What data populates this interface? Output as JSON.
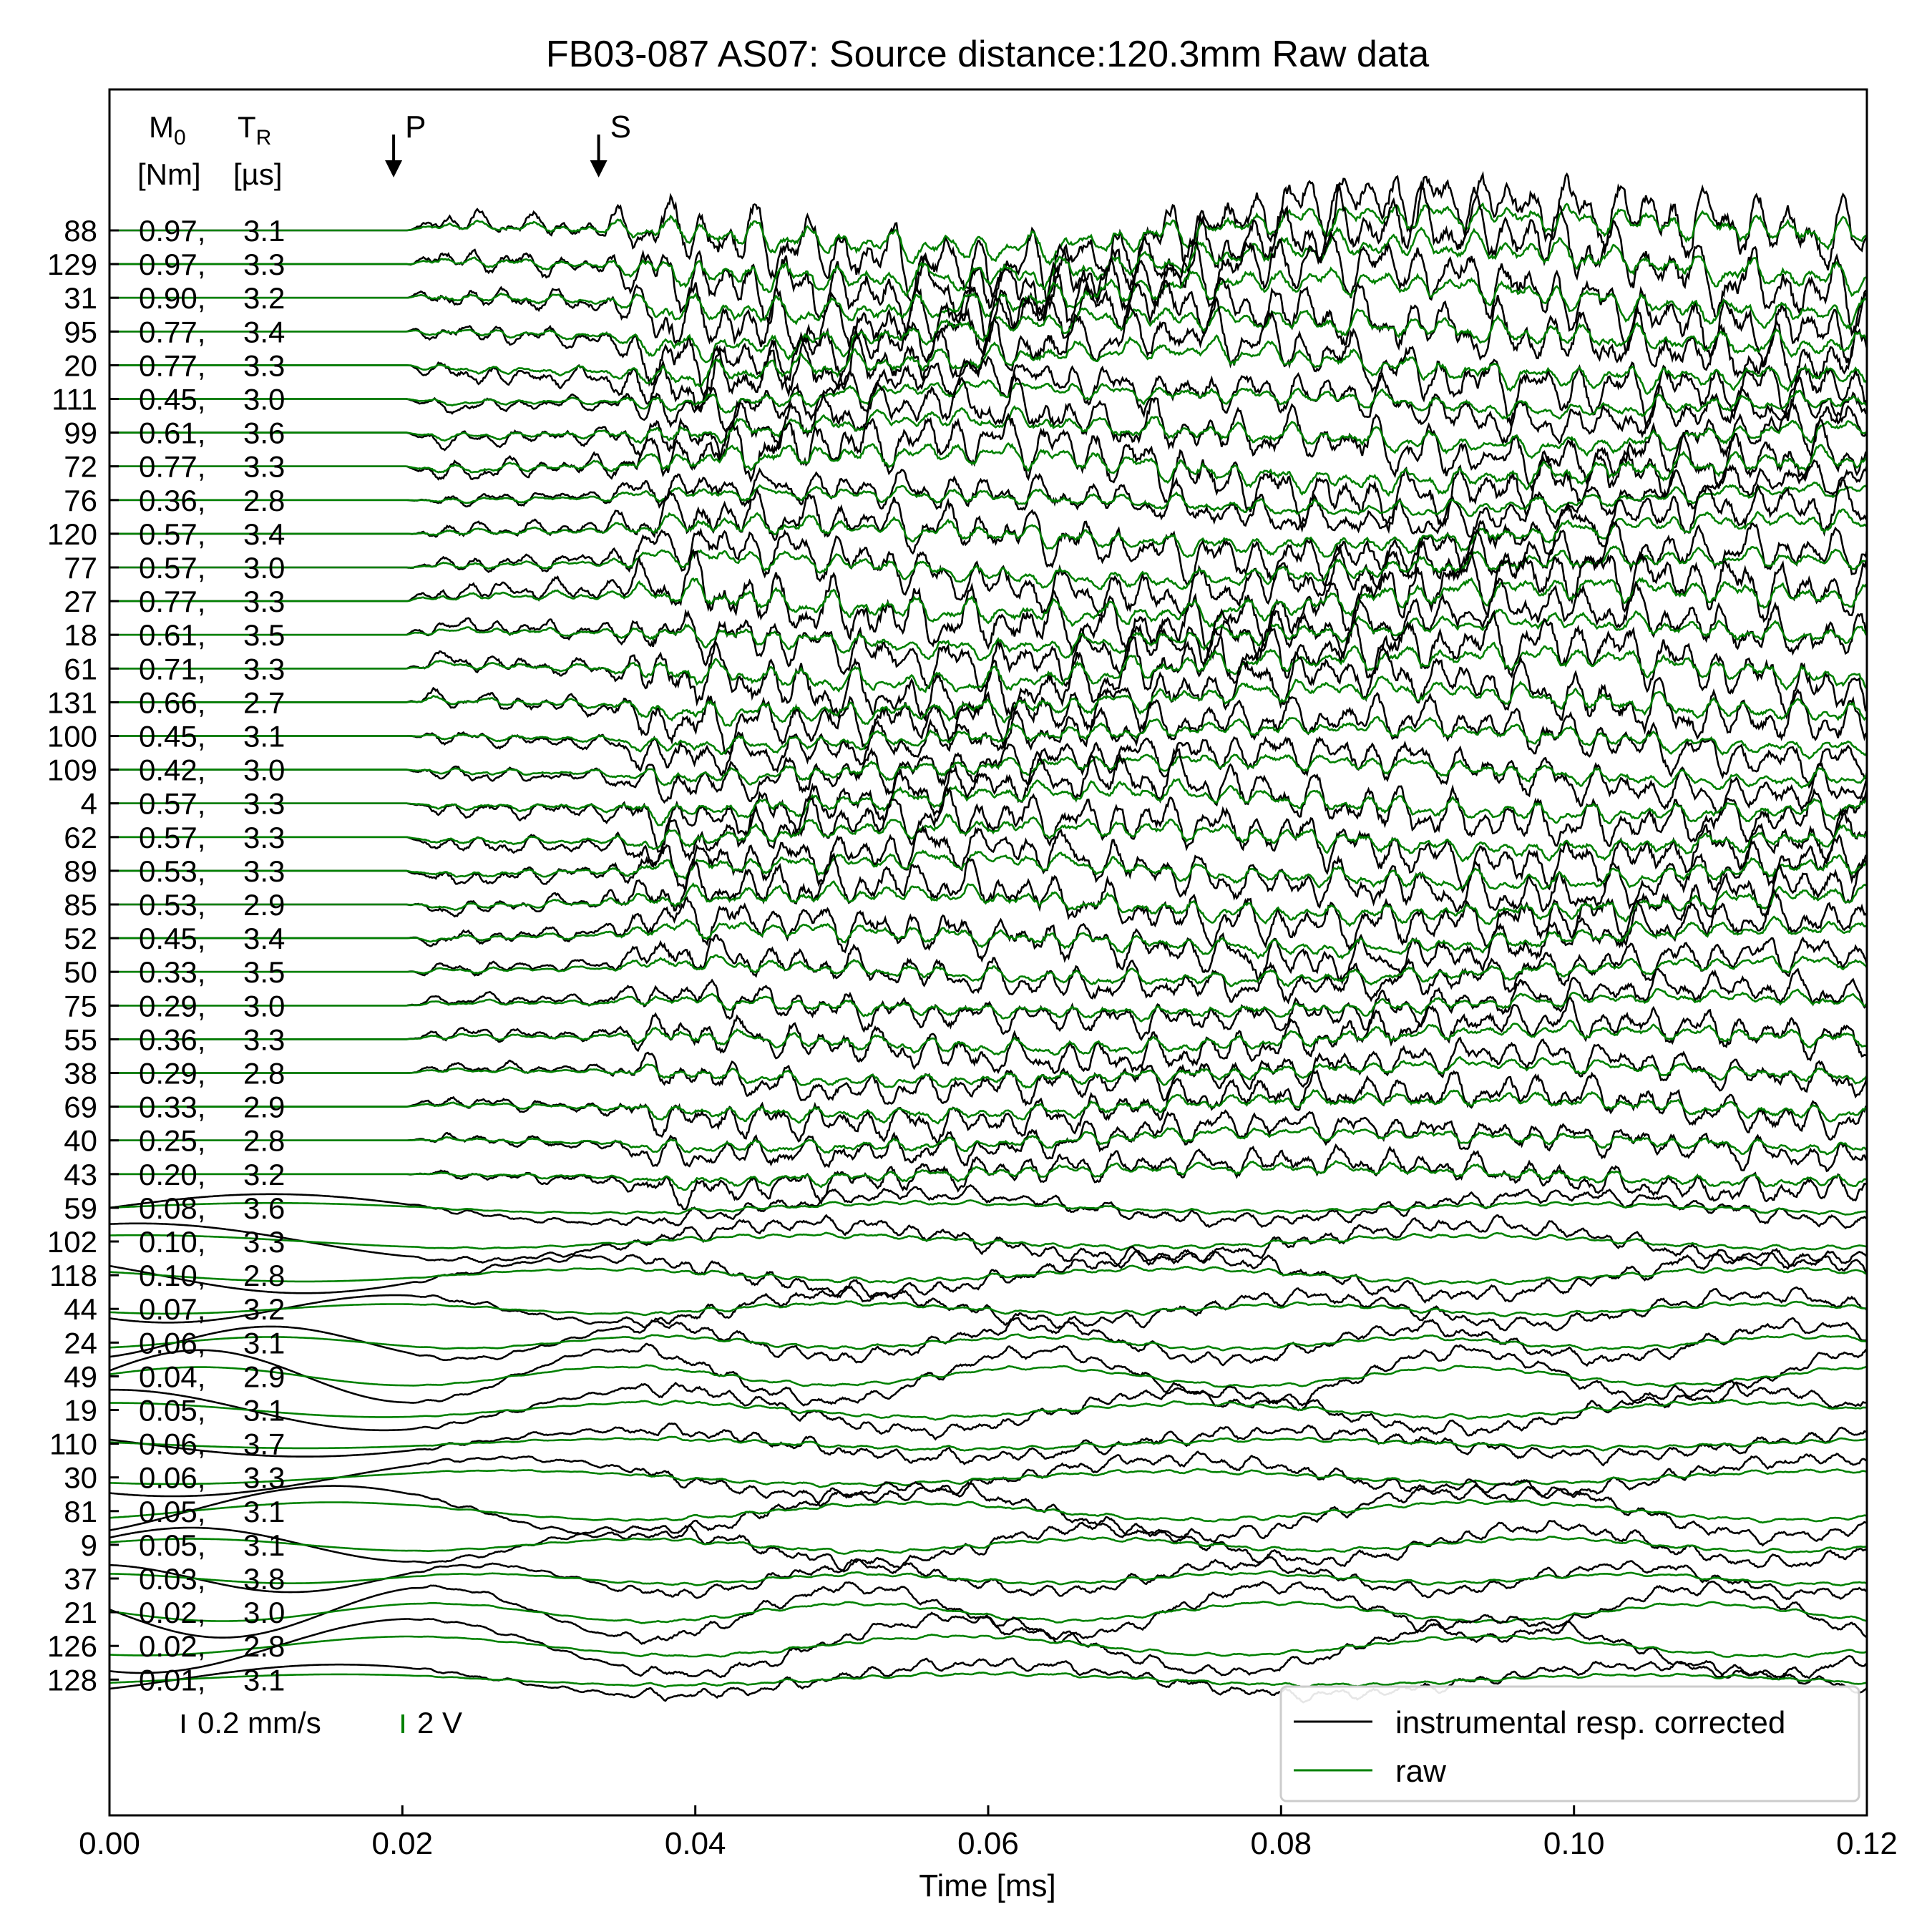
{
  "chart_data": {
    "type": "line",
    "title": "FB03-087 AS07: Source distance:120.3mm Raw data",
    "xlabel": "Time [ms]",
    "xlim": [
      0.0,
      0.12
    ],
    "xticks": [
      "0.00",
      "0.02",
      "0.04",
      "0.06",
      "0.08",
      "0.10",
      "0.12"
    ],
    "header": {
      "m0_symbol": "M",
      "m0_sub": "0",
      "m0_unit": "[Nm]",
      "tr_symbol": "T",
      "tr_sub": "R",
      "tr_unit": "[µs]"
    },
    "arrivals": [
      {
        "label": "P",
        "x": 0.0194
      },
      {
        "label": "S",
        "x": 0.0334
      }
    ],
    "scale_bars": [
      {
        "label": "0.2 mm/s",
        "color": "#000000"
      },
      {
        "label": "2 V",
        "color": "#008000"
      }
    ],
    "legend": {
      "position": "lower-right",
      "entries": [
        {
          "label": "instrumental resp. corrected",
          "color": "#000000"
        },
        {
          "label": "raw",
          "color": "#008000"
        }
      ]
    },
    "p_onset": 0.0203,
    "s_onset": 0.0335,
    "grid": false,
    "traces": [
      {
        "id": "88",
        "m0": "0.97",
        "tr": "3.1"
      },
      {
        "id": "129",
        "m0": "0.97",
        "tr": "3.3"
      },
      {
        "id": "31",
        "m0": "0.90",
        "tr": "3.2"
      },
      {
        "id": "95",
        "m0": "0.77",
        "tr": "3.4"
      },
      {
        "id": "20",
        "m0": "0.77",
        "tr": "3.3"
      },
      {
        "id": "111",
        "m0": "0.45",
        "tr": "3.0"
      },
      {
        "id": "99",
        "m0": "0.61",
        "tr": "3.6"
      },
      {
        "id": "72",
        "m0": "0.77",
        "tr": "3.3"
      },
      {
        "id": "76",
        "m0": "0.36",
        "tr": "2.8"
      },
      {
        "id": "120",
        "m0": "0.57",
        "tr": "3.4"
      },
      {
        "id": "77",
        "m0": "0.57",
        "tr": "3.0"
      },
      {
        "id": "27",
        "m0": "0.77",
        "tr": "3.3"
      },
      {
        "id": "18",
        "m0": "0.61",
        "tr": "3.5"
      },
      {
        "id": "61",
        "m0": "0.71",
        "tr": "3.3"
      },
      {
        "id": "131",
        "m0": "0.66",
        "tr": "2.7"
      },
      {
        "id": "100",
        "m0": "0.45",
        "tr": "3.1"
      },
      {
        "id": "109",
        "m0": "0.42",
        "tr": "3.0"
      },
      {
        "id": "4",
        "m0": "0.57",
        "tr": "3.3"
      },
      {
        "id": "62",
        "m0": "0.57",
        "tr": "3.3"
      },
      {
        "id": "89",
        "m0": "0.53",
        "tr": "3.3"
      },
      {
        "id": "85",
        "m0": "0.53",
        "tr": "2.9"
      },
      {
        "id": "52",
        "m0": "0.45",
        "tr": "3.4"
      },
      {
        "id": "50",
        "m0": "0.33",
        "tr": "3.5"
      },
      {
        "id": "75",
        "m0": "0.29",
        "tr": "3.0"
      },
      {
        "id": "55",
        "m0": "0.36",
        "tr": "3.3"
      },
      {
        "id": "38",
        "m0": "0.29",
        "tr": "2.8"
      },
      {
        "id": "69",
        "m0": "0.33",
        "tr": "2.9"
      },
      {
        "id": "40",
        "m0": "0.25",
        "tr": "2.8"
      },
      {
        "id": "43",
        "m0": "0.20",
        "tr": "3.2"
      },
      {
        "id": "59",
        "m0": "0.08",
        "tr": "3.6"
      },
      {
        "id": "102",
        "m0": "0.10",
        "tr": "3.3"
      },
      {
        "id": "118",
        "m0": "0.10",
        "tr": "2.8"
      },
      {
        "id": "44",
        "m0": "0.07",
        "tr": "3.2"
      },
      {
        "id": "24",
        "m0": "0.06",
        "tr": "3.1"
      },
      {
        "id": "49",
        "m0": "0.04",
        "tr": "2.9"
      },
      {
        "id": "19",
        "m0": "0.05",
        "tr": "3.1"
      },
      {
        "id": "110",
        "m0": "0.06",
        "tr": "3.7"
      },
      {
        "id": "30",
        "m0": "0.06",
        "tr": "3.3"
      },
      {
        "id": "81",
        "m0": "0.05",
        "tr": "3.1"
      },
      {
        "id": "9",
        "m0": "0.05",
        "tr": "3.1"
      },
      {
        "id": "37",
        "m0": "0.03",
        "tr": "3.8"
      },
      {
        "id": "21",
        "m0": "0.02",
        "tr": "3.0"
      },
      {
        "id": "126",
        "m0": "0.02",
        "tr": "2.8"
      },
      {
        "id": "128",
        "m0": "0.01",
        "tr": "3.1"
      }
    ]
  }
}
